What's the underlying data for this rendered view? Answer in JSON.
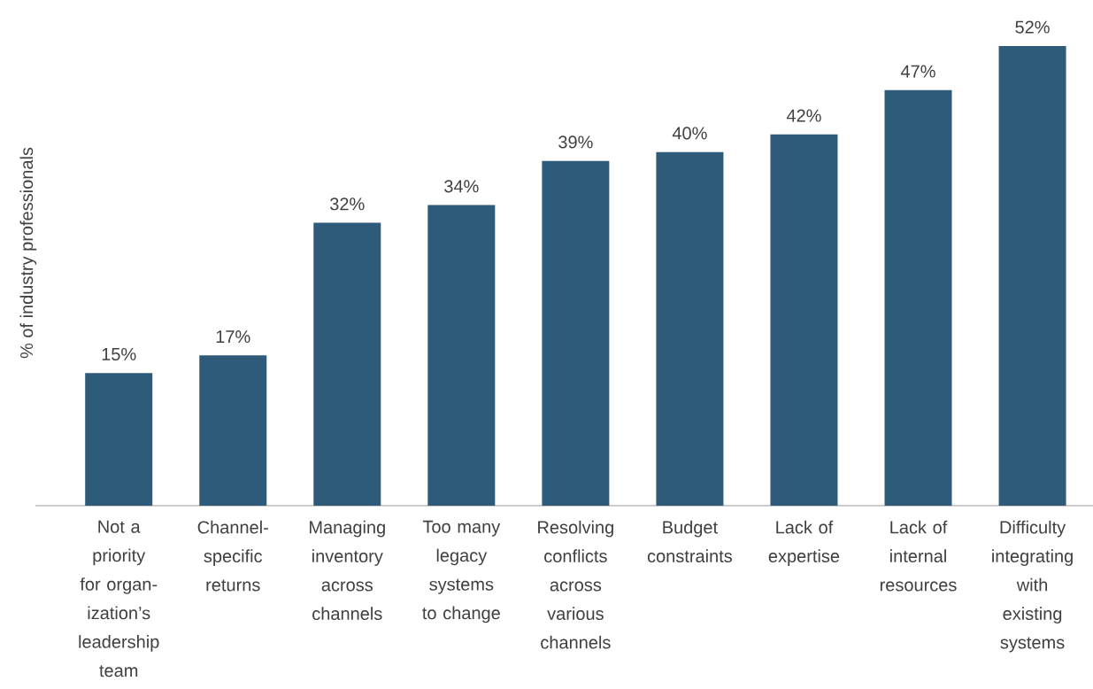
{
  "chart_data": {
    "type": "bar",
    "ylabel": "% of industry professionals",
    "categories": [
      "Not a priority for organ-ization’s leadership team",
      "Channel-specific returns",
      "Managing inventory across channels",
      "Too many legacy systems to change",
      "Resolving conflicts across various channels",
      "Budget constraints",
      "Lack of expertise",
      "Lack of internal resources",
      "Difficulty integrating with existing systems"
    ],
    "values": [
      15,
      17,
      32,
      34,
      39,
      40,
      42,
      47,
      52
    ],
    "value_labels": [
      "15%",
      "17%",
      "32%",
      "34%",
      "39%",
      "40%",
      "42%",
      "47%",
      "52%"
    ],
    "color": "#2e5b79"
  }
}
